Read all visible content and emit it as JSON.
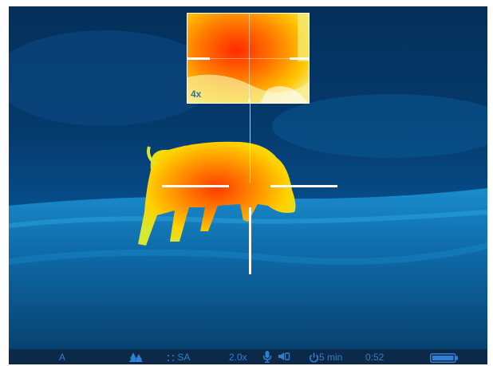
{
  "pip": {
    "zoom_label": "4x"
  },
  "status": {
    "mode": "A",
    "scene_icon": "trees-icon",
    "stadiametric_label": "SA",
    "zoom": "2.0x",
    "mic_icon": "microphone-icon",
    "record_icon": "video-record-icon",
    "autooff_icon": "power-icon",
    "autooff_value": "5 min",
    "time": "0:52",
    "battery_icon": "battery-icon"
  },
  "colors": {
    "status_text": "#2f7fd0",
    "status_bg": "#0c2a48",
    "reticle": "#ffffff"
  }
}
